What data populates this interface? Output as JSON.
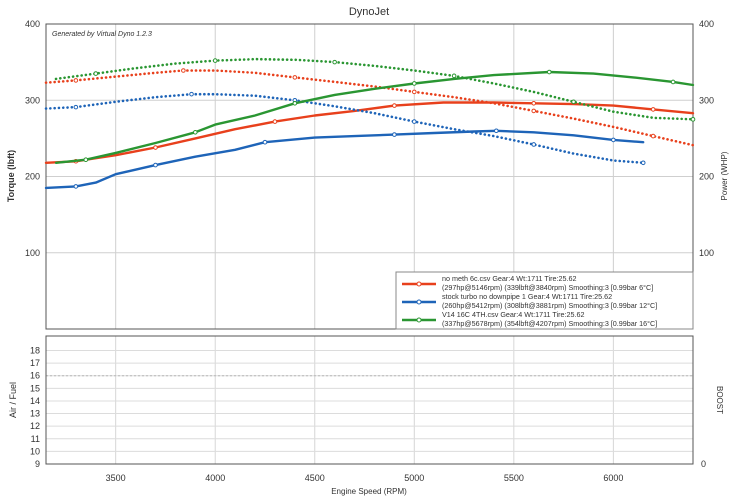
{
  "chart_data": {
    "type": "line",
    "title": "DynoJet",
    "watermark": "Generated by Virtual Dyno 1.2.3",
    "xlabel": "Engine Speed (RPM)",
    "ylabel_left": "Torque (lbft)",
    "ylabel_right": "Power (WHP)",
    "xlim": [
      3150,
      6400
    ],
    "ylim": [
      0,
      400
    ],
    "x_ticks": [
      "3500",
      "4000",
      "4500",
      "5000",
      "5500",
      "6000"
    ],
    "y_ticks_left": [
      "100",
      "200",
      "300",
      "400"
    ],
    "y_ticks_right": [
      "100",
      "200",
      "300",
      "400"
    ],
    "grid": true,
    "legend_position": "bottom-right",
    "legend": [
      {
        "line1": "no meth 6c.csv Gear:4 Wt:1711 Tire:25.62",
        "line2": "(297hp@5146rpm) (339lbft@3840rpm) Smoothing:3 [0.99bar 6°C]",
        "color": "#e8401c"
      },
      {
        "line1": "stock turbo no downpipe 1 Gear:4 Wt:1711 Tire:25.62",
        "line2": "(260hp@5412rpm) (308lbft@3881rpm) Smoothing:3 [0.99bar 12°C]",
        "color": "#1e64b8"
      },
      {
        "line1": "V14 16C 4TH.csv Gear:4 Wt:1711 Tire:25.62",
        "line2": "(337hp@5678rpm) (354lbft@4207rpm) Smoothing:3 [0.99bar 16°C]",
        "color": "#2a9632"
      }
    ],
    "series": [
      {
        "name": "no meth 6c.csv",
        "measure": "power",
        "color": "#e8401c",
        "x": [
          3150,
          3300,
          3400,
          3500,
          3700,
          3900,
          4100,
          4300,
          4500,
          4700,
          4900,
          5146,
          5400,
          5600,
          5800,
          6000,
          6200,
          6400
        ],
        "y": [
          218,
          220,
          224,
          228,
          238,
          250,
          262,
          272,
          280,
          286,
          293,
          297,
          297,
          296,
          295,
          293,
          288,
          283
        ]
      },
      {
        "name": "no meth 6c.csv",
        "measure": "torque",
        "color": "#e8401c",
        "x": [
          3150,
          3300,
          3500,
          3700,
          3840,
          4000,
          4200,
          4400,
          4600,
          4800,
          5000,
          5200,
          5400,
          5600,
          5800,
          6000,
          6200,
          6400
        ],
        "y": [
          323,
          326,
          331,
          336,
          339,
          339,
          336,
          330,
          324,
          318,
          311,
          304,
          296,
          286,
          276,
          265,
          253,
          241
        ]
      },
      {
        "name": "stock turbo no downpipe 1",
        "measure": "power",
        "color": "#1e64b8",
        "x": [
          3150,
          3300,
          3400,
          3500,
          3700,
          3900,
          4100,
          4250,
          4500,
          4700,
          4900,
          5100,
          5300,
          5412,
          5600,
          5800,
          6000,
          6150
        ],
        "y": [
          185,
          187,
          192,
          203,
          215,
          226,
          235,
          245,
          251,
          253,
          255,
          257,
          259,
          260,
          258,
          254,
          248,
          245
        ]
      },
      {
        "name": "stock turbo no downpipe 1",
        "measure": "torque",
        "color": "#1e64b8",
        "x": [
          3150,
          3300,
          3500,
          3700,
          3881,
          4000,
          4200,
          4400,
          4600,
          4800,
          5000,
          5200,
          5400,
          5600,
          5800,
          6000,
          6150
        ],
        "y": [
          289,
          291,
          298,
          304,
          308,
          308,
          306,
          300,
          292,
          283,
          272,
          262,
          253,
          242,
          230,
          221,
          218
        ]
      },
      {
        "name": "V14 16C 4TH.csv",
        "measure": "power",
        "color": "#2a9632",
        "x": [
          3200,
          3350,
          3500,
          3700,
          3900,
          4000,
          4200,
          4400,
          4600,
          4800,
          5000,
          5200,
          5400,
          5678,
          5900,
          6100,
          6300,
          6400
        ],
        "y": [
          218,
          222,
          231,
          244,
          258,
          268,
          280,
          296,
          307,
          315,
          322,
          328,
          333,
          337,
          335,
          330,
          324,
          320
        ]
      },
      {
        "name": "V14 16C 4TH.csv",
        "measure": "torque",
        "color": "#2a9632",
        "x": [
          3200,
          3400,
          3600,
          3800,
          4000,
          4207,
          4400,
          4600,
          4800,
          5000,
          5200,
          5400,
          5600,
          5800,
          6000,
          6200,
          6400
        ],
        "y": [
          328,
          335,
          342,
          348,
          352,
          354,
          353,
          350,
          345,
          339,
          332,
          322,
          311,
          298,
          285,
          277,
          275
        ]
      }
    ],
    "sub_chart": {
      "ylabel_left": "Air / Fuel",
      "ylabel_right": "BOOST",
      "y_ticks": [
        "9",
        "10",
        "11",
        "12",
        "13",
        "14",
        "15",
        "16",
        "17",
        "18"
      ],
      "right_tick": "0"
    }
  }
}
